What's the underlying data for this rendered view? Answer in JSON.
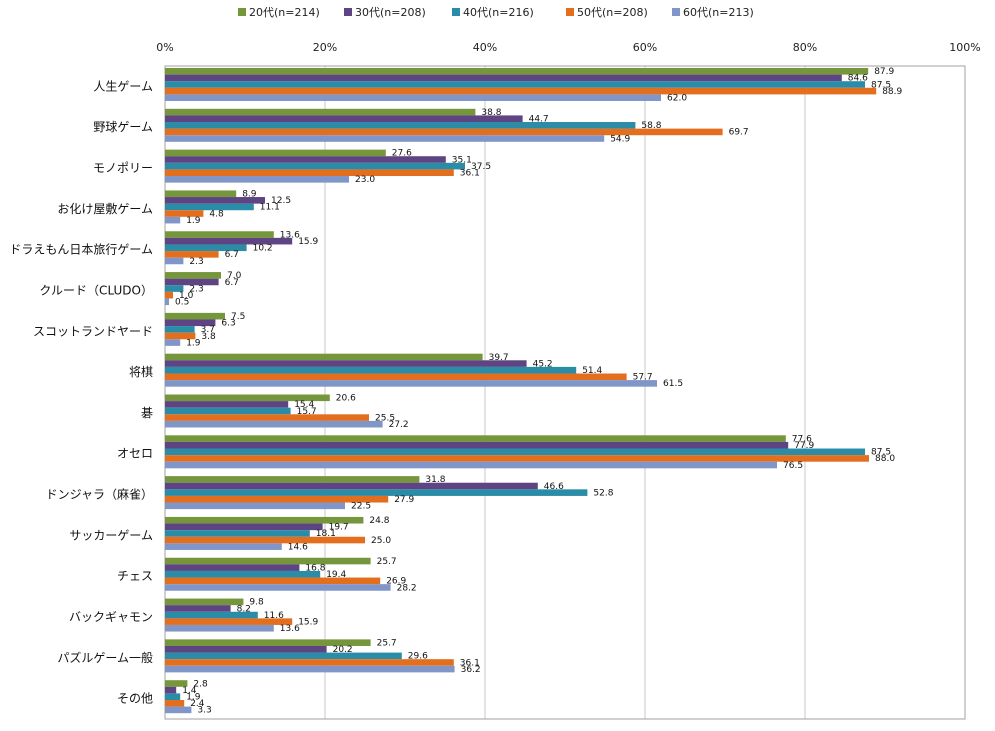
{
  "chart_data": {
    "type": "bar",
    "orientation": "horizontal",
    "title": "",
    "xlabel": "",
    "ylabel": "",
    "xlim": [
      0,
      100
    ],
    "x_ticks": [
      "0%",
      "20%",
      "40%",
      "60%",
      "80%",
      "100%"
    ],
    "legend_position": "top",
    "categories": [
      "人生ゲーム",
      "野球ゲーム",
      "モノポリー",
      "お化け屋敷ゲーム",
      "ドラえもん日本旅行ゲーム",
      "クルード（CLUDO）",
      "スコットランドヤード",
      "将棋",
      "碁",
      "オセロ",
      "ドンジャラ（麻雀）",
      "サッカーゲーム",
      "チェス",
      "バックギャモン",
      "パズルゲーム一般",
      "その他"
    ],
    "series": [
      {
        "name": "20代(n=214)",
        "color": "#76963c",
        "values": [
          87.9,
          38.8,
          27.6,
          8.9,
          13.6,
          7.0,
          7.5,
          39.7,
          20.6,
          77.6,
          31.8,
          24.8,
          25.7,
          9.8,
          25.7,
          2.8
        ]
      },
      {
        "name": "30代(n=208)",
        "color": "#5e4482",
        "values": [
          84.6,
          44.7,
          35.1,
          12.5,
          15.9,
          6.7,
          6.3,
          45.2,
          15.4,
          77.9,
          46.6,
          19.7,
          16.8,
          8.2,
          20.2,
          1.4
        ]
      },
      {
        "name": "40代(n=216)",
        "color": "#2b8ca8",
        "values": [
          87.5,
          58.8,
          37.5,
          11.1,
          10.2,
          2.3,
          3.7,
          51.4,
          15.7,
          87.5,
          52.8,
          18.1,
          19.4,
          11.6,
          29.6,
          1.9
        ]
      },
      {
        "name": "50代(n=208)",
        "color": "#e36f1e",
        "values": [
          88.9,
          69.7,
          36.1,
          4.8,
          6.7,
          1.0,
          3.8,
          57.7,
          25.5,
          88.0,
          27.9,
          25.0,
          26.9,
          15.9,
          36.1,
          2.4
        ]
      },
      {
        "name": "60代(n=213)",
        "color": "#8096c8",
        "values": [
          62.0,
          54.9,
          23.0,
          1.9,
          2.3,
          0.5,
          1.9,
          61.5,
          27.2,
          76.5,
          22.5,
          14.6,
          28.2,
          13.6,
          36.2,
          3.3
        ]
      }
    ]
  }
}
